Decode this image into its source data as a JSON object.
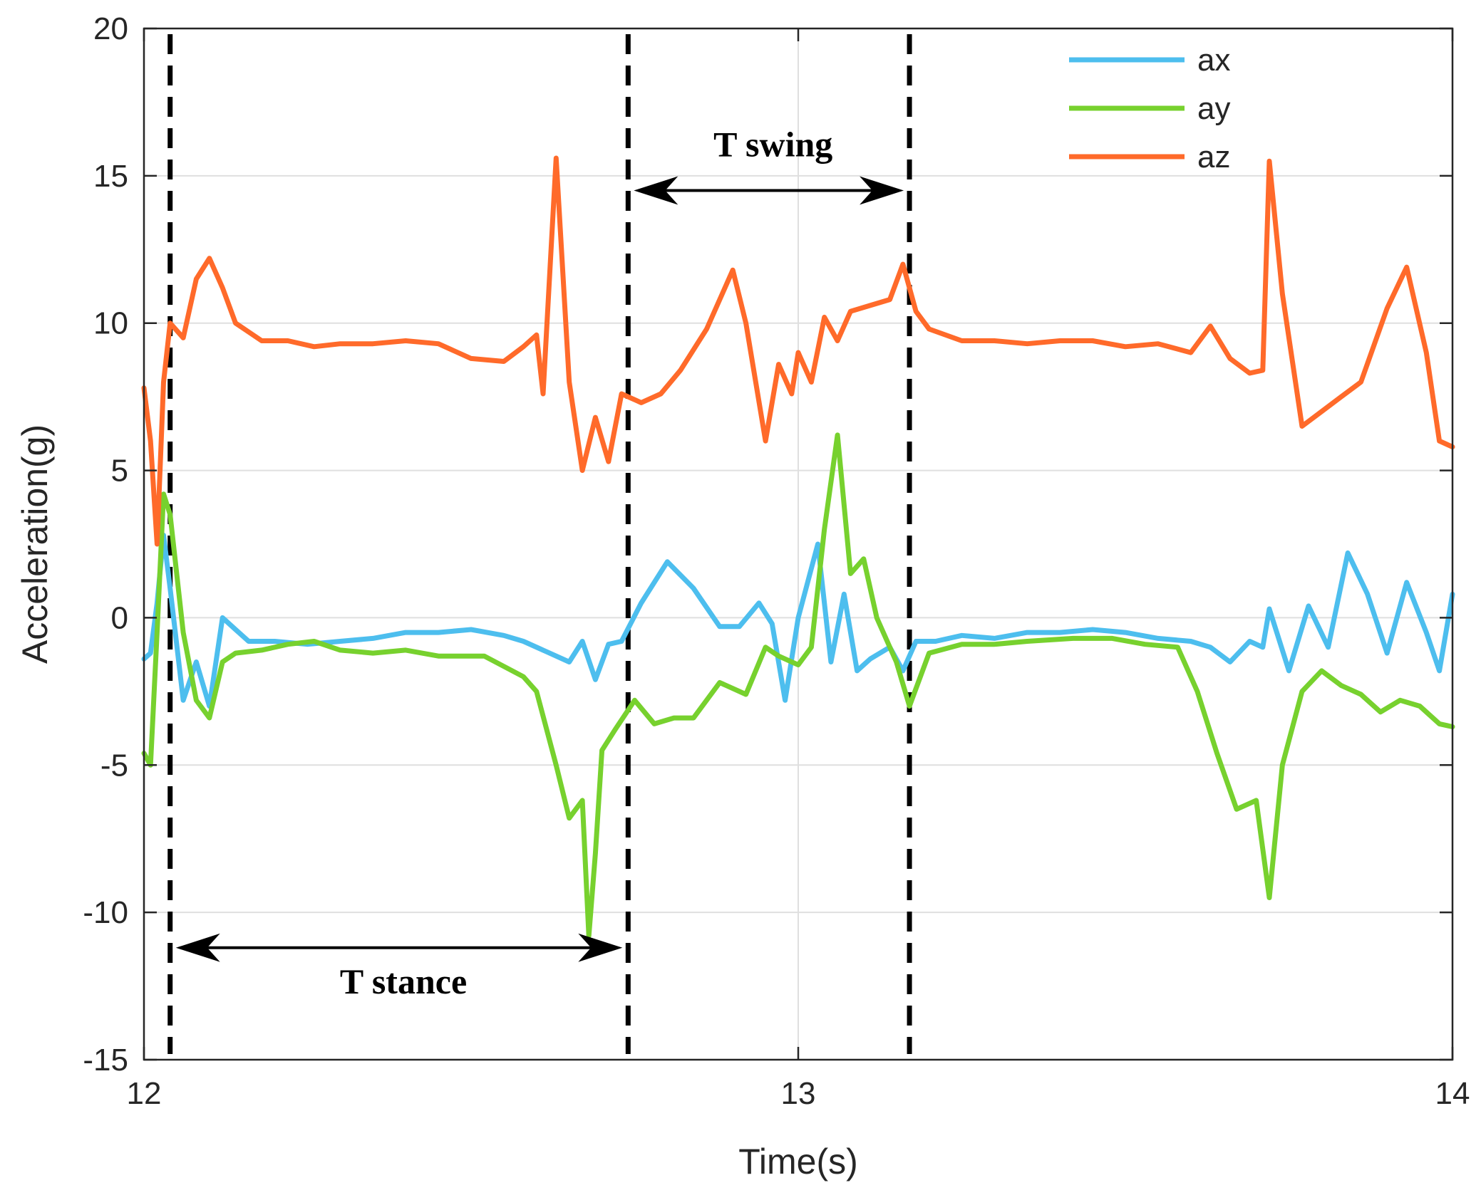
{
  "chart_data": {
    "type": "line",
    "xlabel": "Time(s)",
    "ylabel": "Acceleration(g)",
    "xlim": [
      12,
      14
    ],
    "ylim": [
      -15,
      20
    ],
    "x_ticks": [
      12,
      13,
      14
    ],
    "y_ticks": [
      -15,
      -10,
      -5,
      0,
      5,
      10,
      15,
      20
    ],
    "grid": true,
    "legend_position": "top-right",
    "series": [
      {
        "name": "ax",
        "color": "#4DBEEE",
        "points": [
          [
            12.0,
            -1.4
          ],
          [
            12.01,
            -1.2
          ],
          [
            12.02,
            0.5
          ],
          [
            12.03,
            2.8
          ],
          [
            12.04,
            1.0
          ],
          [
            12.06,
            -2.8
          ],
          [
            12.08,
            -1.5
          ],
          [
            12.1,
            -3.0
          ],
          [
            12.12,
            0.0
          ],
          [
            12.14,
            -0.4
          ],
          [
            12.16,
            -0.8
          ],
          [
            12.2,
            -0.8
          ],
          [
            12.25,
            -0.9
          ],
          [
            12.3,
            -0.8
          ],
          [
            12.35,
            -0.7
          ],
          [
            12.4,
            -0.5
          ],
          [
            12.45,
            -0.5
          ],
          [
            12.5,
            -0.4
          ],
          [
            12.55,
            -0.6
          ],
          [
            12.58,
            -0.8
          ],
          [
            12.62,
            -1.2
          ],
          [
            12.65,
            -1.5
          ],
          [
            12.67,
            -0.8
          ],
          [
            12.69,
            -2.1
          ],
          [
            12.71,
            -0.9
          ],
          [
            12.73,
            -0.8
          ],
          [
            12.76,
            0.5
          ],
          [
            12.8,
            1.9
          ],
          [
            12.84,
            1.0
          ],
          [
            12.88,
            -0.3
          ],
          [
            12.91,
            -0.3
          ],
          [
            12.94,
            0.5
          ],
          [
            12.96,
            -0.2
          ],
          [
            12.98,
            -2.8
          ],
          [
            13.0,
            0.0
          ],
          [
            13.03,
            2.5
          ],
          [
            13.05,
            -1.5
          ],
          [
            13.07,
            0.8
          ],
          [
            13.09,
            -1.8
          ],
          [
            13.11,
            -1.4
          ],
          [
            13.14,
            -1.0
          ],
          [
            13.16,
            -1.8
          ],
          [
            13.18,
            -0.8
          ],
          [
            13.21,
            -0.8
          ],
          [
            13.25,
            -0.6
          ],
          [
            13.3,
            -0.7
          ],
          [
            13.35,
            -0.5
          ],
          [
            13.4,
            -0.5
          ],
          [
            13.45,
            -0.4
          ],
          [
            13.5,
            -0.5
          ],
          [
            13.55,
            -0.7
          ],
          [
            13.6,
            -0.8
          ],
          [
            13.63,
            -1.0
          ],
          [
            13.66,
            -1.5
          ],
          [
            13.69,
            -0.8
          ],
          [
            13.71,
            -1.0
          ],
          [
            13.72,
            0.3
          ],
          [
            13.75,
            -1.8
          ],
          [
            13.78,
            0.4
          ],
          [
            13.81,
            -1.0
          ],
          [
            13.84,
            2.2
          ],
          [
            13.87,
            0.8
          ],
          [
            13.9,
            -1.2
          ],
          [
            13.93,
            1.2
          ],
          [
            13.96,
            -0.5
          ],
          [
            13.98,
            -1.8
          ],
          [
            14.0,
            0.8
          ]
        ]
      },
      {
        "name": "ay",
        "color": "#77D12E",
        "points": [
          [
            12.0,
            -4.6
          ],
          [
            12.01,
            -5.0
          ],
          [
            12.02,
            -0.5
          ],
          [
            12.03,
            4.2
          ],
          [
            12.04,
            3.5
          ],
          [
            12.06,
            -0.5
          ],
          [
            12.08,
            -2.8
          ],
          [
            12.1,
            -3.4
          ],
          [
            12.12,
            -1.5
          ],
          [
            12.14,
            -1.2
          ],
          [
            12.18,
            -1.1
          ],
          [
            12.22,
            -0.9
          ],
          [
            12.26,
            -0.8
          ],
          [
            12.3,
            -1.1
          ],
          [
            12.35,
            -1.2
          ],
          [
            12.4,
            -1.1
          ],
          [
            12.45,
            -1.3
          ],
          [
            12.52,
            -1.3
          ],
          [
            12.58,
            -2.0
          ],
          [
            12.6,
            -2.5
          ],
          [
            12.63,
            -5.0
          ],
          [
            12.65,
            -6.8
          ],
          [
            12.67,
            -6.2
          ],
          [
            12.68,
            -10.8
          ],
          [
            12.69,
            -8.0
          ],
          [
            12.7,
            -4.5
          ],
          [
            12.72,
            -3.8
          ],
          [
            12.75,
            -2.8
          ],
          [
            12.78,
            -3.6
          ],
          [
            12.81,
            -3.4
          ],
          [
            12.84,
            -3.4
          ],
          [
            12.88,
            -2.2
          ],
          [
            12.92,
            -2.6
          ],
          [
            12.95,
            -1.0
          ],
          [
            12.97,
            -1.3
          ],
          [
            13.0,
            -1.6
          ],
          [
            13.02,
            -1.0
          ],
          [
            13.04,
            3.0
          ],
          [
            13.06,
            6.2
          ],
          [
            13.08,
            1.5
          ],
          [
            13.1,
            2.0
          ],
          [
            13.12,
            0.0
          ],
          [
            13.15,
            -1.5
          ],
          [
            13.17,
            -3.0
          ],
          [
            13.2,
            -1.2
          ],
          [
            13.25,
            -0.9
          ],
          [
            13.3,
            -0.9
          ],
          [
            13.35,
            -0.8
          ],
          [
            13.42,
            -0.7
          ],
          [
            13.48,
            -0.7
          ],
          [
            13.53,
            -0.9
          ],
          [
            13.58,
            -1.0
          ],
          [
            13.61,
            -2.5
          ],
          [
            13.64,
            -4.6
          ],
          [
            13.67,
            -6.5
          ],
          [
            13.7,
            -6.2
          ],
          [
            13.72,
            -9.5
          ],
          [
            13.74,
            -5.0
          ],
          [
            13.77,
            -2.5
          ],
          [
            13.8,
            -1.8
          ],
          [
            13.83,
            -2.3
          ],
          [
            13.86,
            -2.6
          ],
          [
            13.89,
            -3.2
          ],
          [
            13.92,
            -2.8
          ],
          [
            13.95,
            -3.0
          ],
          [
            13.98,
            -3.6
          ],
          [
            14.0,
            -3.7
          ]
        ]
      },
      {
        "name": "az",
        "color": "#FF6A2A",
        "points": [
          [
            12.0,
            7.8
          ],
          [
            12.01,
            6.0
          ],
          [
            12.02,
            2.5
          ],
          [
            12.03,
            8.0
          ],
          [
            12.04,
            10.0
          ],
          [
            12.06,
            9.5
          ],
          [
            12.08,
            11.5
          ],
          [
            12.1,
            12.2
          ],
          [
            12.12,
            11.2
          ],
          [
            12.14,
            10.0
          ],
          [
            12.16,
            9.7
          ],
          [
            12.18,
            9.4
          ],
          [
            12.22,
            9.4
          ],
          [
            12.26,
            9.2
          ],
          [
            12.3,
            9.3
          ],
          [
            12.35,
            9.3
          ],
          [
            12.4,
            9.4
          ],
          [
            12.45,
            9.3
          ],
          [
            12.5,
            8.8
          ],
          [
            12.55,
            8.7
          ],
          [
            12.58,
            9.2
          ],
          [
            12.6,
            9.6
          ],
          [
            12.61,
            7.6
          ],
          [
            12.63,
            15.6
          ],
          [
            12.65,
            8.0
          ],
          [
            12.67,
            5.0
          ],
          [
            12.69,
            6.8
          ],
          [
            12.71,
            5.3
          ],
          [
            12.73,
            7.6
          ],
          [
            12.76,
            7.3
          ],
          [
            12.79,
            7.6
          ],
          [
            12.82,
            8.4
          ],
          [
            12.86,
            9.8
          ],
          [
            12.9,
            11.8
          ],
          [
            12.92,
            10.0
          ],
          [
            12.95,
            6.0
          ],
          [
            12.97,
            8.6
          ],
          [
            12.99,
            7.6
          ],
          [
            13.0,
            9.0
          ],
          [
            13.02,
            8.0
          ],
          [
            13.04,
            10.2
          ],
          [
            13.06,
            9.4
          ],
          [
            13.08,
            10.4
          ],
          [
            13.11,
            10.6
          ],
          [
            13.14,
            10.8
          ],
          [
            13.16,
            12.0
          ],
          [
            13.18,
            10.4
          ],
          [
            13.2,
            9.8
          ],
          [
            13.25,
            9.4
          ],
          [
            13.3,
            9.4
          ],
          [
            13.35,
            9.3
          ],
          [
            13.4,
            9.4
          ],
          [
            13.45,
            9.4
          ],
          [
            13.5,
            9.2
          ],
          [
            13.55,
            9.3
          ],
          [
            13.6,
            9.0
          ],
          [
            13.63,
            9.9
          ],
          [
            13.66,
            8.8
          ],
          [
            13.69,
            8.3
          ],
          [
            13.71,
            8.4
          ],
          [
            13.72,
            15.5
          ],
          [
            13.74,
            11.0
          ],
          [
            13.77,
            6.5
          ],
          [
            13.8,
            7.0
          ],
          [
            13.83,
            7.5
          ],
          [
            13.86,
            8.0
          ],
          [
            13.9,
            10.5
          ],
          [
            13.93,
            11.9
          ],
          [
            13.96,
            9.0
          ],
          [
            13.98,
            6.0
          ],
          [
            14.0,
            5.8
          ]
        ]
      }
    ],
    "reference_lines": [
      12.04,
      12.74,
      13.17
    ],
    "annotations": [
      {
        "label": "T stance",
        "from": 12.04,
        "to": 12.74,
        "y": -11.2
      },
      {
        "label": "T swing",
        "from": 12.74,
        "to": 13.17,
        "y": 14.5
      }
    ]
  }
}
